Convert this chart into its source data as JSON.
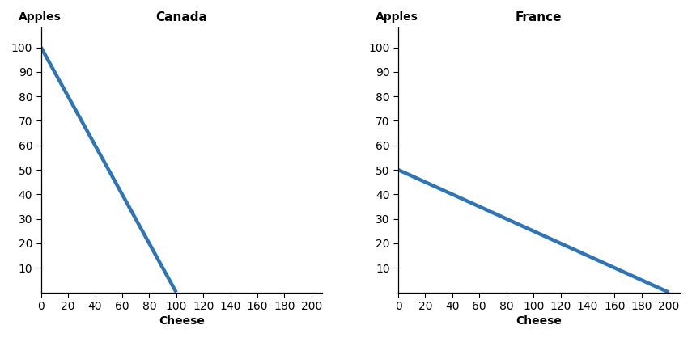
{
  "canada": {
    "title": "Canada",
    "line_x": [
      0,
      100
    ],
    "line_y": [
      100,
      0
    ],
    "xlim": [
      0,
      208
    ],
    "ylim": [
      0,
      108
    ],
    "xticks": [
      0,
      20,
      40,
      60,
      80,
      100,
      120,
      140,
      160,
      180,
      200
    ],
    "yticks": [
      10,
      20,
      30,
      40,
      50,
      60,
      70,
      80,
      90,
      100
    ],
    "xlabel": "Cheese",
    "ylabel": "Apples"
  },
  "france": {
    "title": "France",
    "line_x": [
      0,
      200
    ],
    "line_y": [
      50,
      0
    ],
    "xlim": [
      0,
      208
    ],
    "ylim": [
      0,
      108
    ],
    "xticks": [
      0,
      20,
      40,
      60,
      80,
      100,
      120,
      140,
      160,
      180,
      200
    ],
    "yticks": [
      10,
      20,
      30,
      40,
      50,
      60,
      70,
      80,
      90,
      100
    ],
    "xlabel": "Cheese",
    "ylabel": "Apples"
  },
  "line_color": "#2E75B6",
  "line_width": 3.2,
  "bg_color": "#FFFFFF",
  "title_fontsize": 11,
  "tick_fontsize": 9,
  "axis_label_fontsize": 10
}
